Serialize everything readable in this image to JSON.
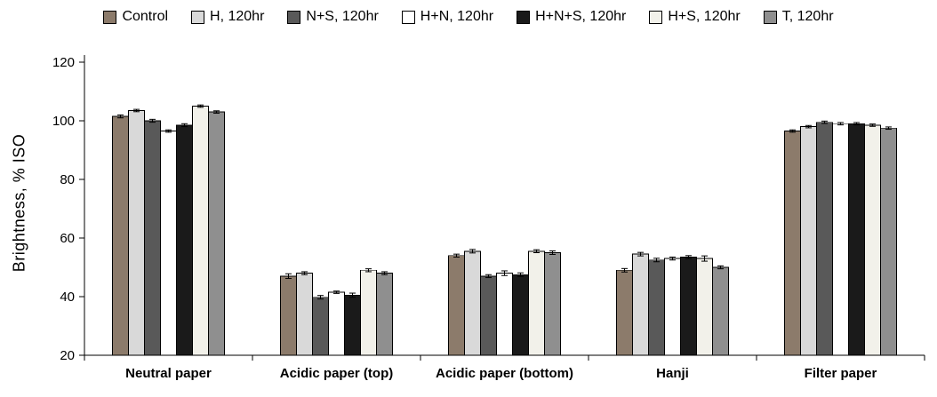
{
  "figure": {
    "title": "",
    "background": "#ffffff"
  },
  "chart_data": {
    "type": "bar",
    "title": "",
    "xlabel": "",
    "ylabel": "Brightness, % ISO",
    "ylim": [
      20,
      120
    ],
    "yticks": [
      20,
      40,
      60,
      80,
      100,
      120
    ],
    "grid": false,
    "legend_position": "top",
    "categories": [
      "Neutral paper",
      "Acidic paper (top)",
      "Acidic paper (bottom)",
      "Hanji",
      "Filter paper"
    ],
    "series": [
      {
        "name": "Control",
        "color": "#8c7b6b",
        "values": [
          101.5,
          47.0,
          54.0,
          49.0,
          96.5
        ],
        "errors": [
          0.5,
          0.8,
          0.5,
          0.6,
          0.4
        ]
      },
      {
        "name": "H, 120hr",
        "color": "#d9d9d9",
        "values": [
          103.5,
          48.0,
          55.5,
          54.5,
          98.0
        ],
        "errors": [
          0.4,
          0.5,
          0.6,
          0.6,
          0.4
        ]
      },
      {
        "name": "N+S, 120hr",
        "color": "#595959",
        "values": [
          100.0,
          39.8,
          47.0,
          52.5,
          99.5
        ],
        "errors": [
          0.5,
          0.6,
          0.5,
          0.6,
          0.4
        ]
      },
      {
        "name": "H+N, 120hr",
        "color": "#ffffff",
        "values": [
          96.5,
          41.5,
          48.0,
          53.0,
          99.0
        ],
        "errors": [
          0.4,
          0.4,
          0.8,
          0.5,
          0.4
        ]
      },
      {
        "name": "H+N+S, 120hr",
        "color": "#1a1a1a",
        "values": [
          98.5,
          40.5,
          47.5,
          53.5,
          99.0
        ],
        "errors": [
          0.5,
          0.7,
          0.6,
          0.5,
          0.4
        ]
      },
      {
        "name": "H+S, 120hr",
        "color": "#f2f1ea",
        "values": [
          105.0,
          49.0,
          55.5,
          53.0,
          98.5
        ],
        "errors": [
          0.4,
          0.5,
          0.5,
          0.9,
          0.4
        ]
      },
      {
        "name": "T, 120hr",
        "color": "#8f8f8f",
        "values": [
          103.0,
          48.0,
          55.0,
          50.0,
          97.5
        ],
        "errors": [
          0.4,
          0.5,
          0.6,
          0.5,
          0.4
        ]
      }
    ]
  }
}
